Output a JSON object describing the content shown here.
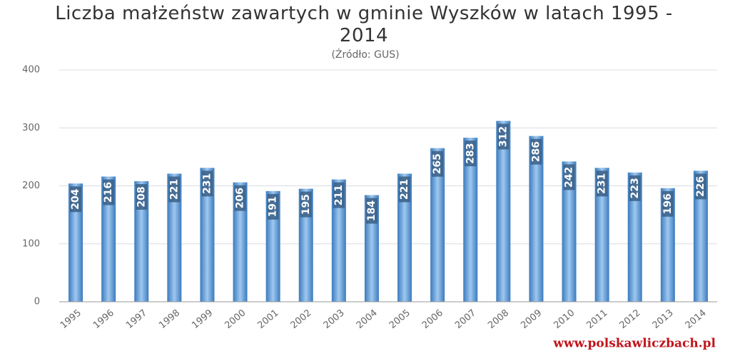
{
  "chart_data": {
    "type": "bar",
    "title": "Liczba małżeństw zawartych w gminie Wyszków w latach 1995 - 2014",
    "subtitle": "(Źródło: GUS)",
    "annotation": "www.polskawliczbach.pl",
    "categories": [
      "1995",
      "1996",
      "1997",
      "1998",
      "1999",
      "2000",
      "2001",
      "2002",
      "2003",
      "2004",
      "2005",
      "2006",
      "2007",
      "2008",
      "2009",
      "2010",
      "2011",
      "2012",
      "2013",
      "2014"
    ],
    "values": [
      204,
      216,
      208,
      221,
      231,
      206,
      191,
      195,
      211,
      184,
      221,
      265,
      283,
      312,
      286,
      242,
      231,
      223,
      196,
      226
    ],
    "color": "#3b7bbd",
    "ylim": [
      0,
      400
    ],
    "yticks": [
      0,
      100,
      200,
      300,
      400
    ],
    "grid": true
  }
}
